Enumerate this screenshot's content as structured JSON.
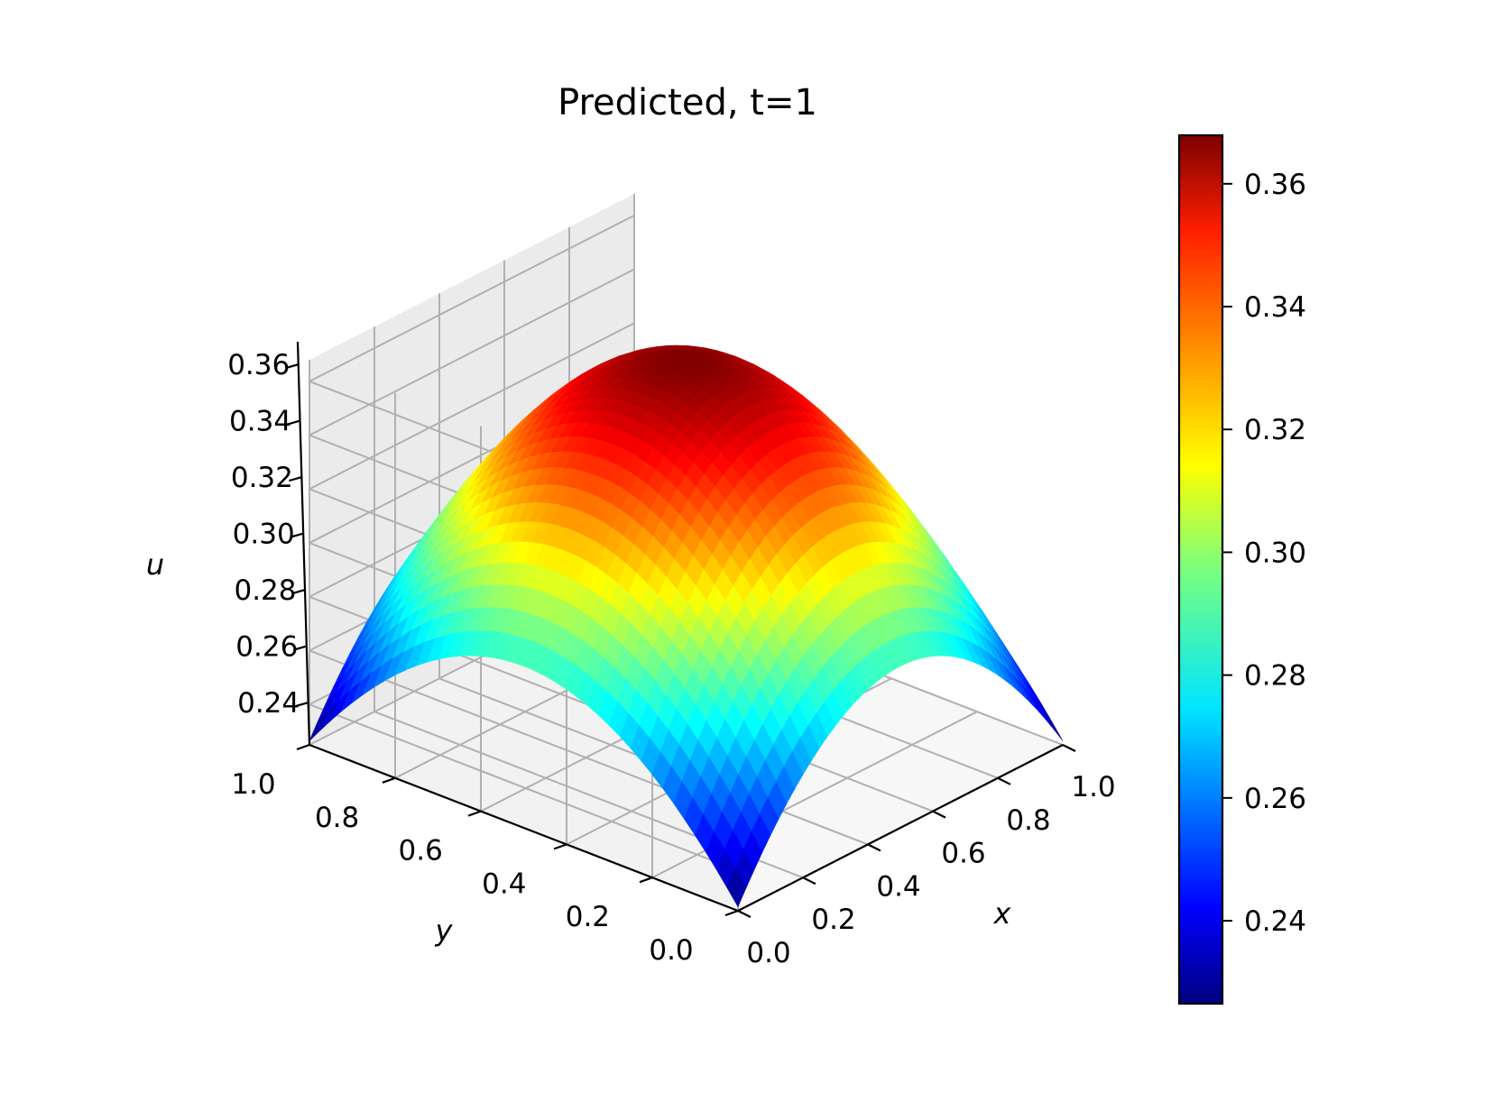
{
  "chart_data": {
    "type": "surface3d",
    "title": "Predicted, t=1",
    "xlabel": "x",
    "ylabel": "y",
    "zlabel": "u",
    "xlim": [
      0.0,
      1.0
    ],
    "ylim": [
      0.0,
      1.0
    ],
    "zlim": [
      0.225,
      0.368
    ],
    "x_ticks": [
      "0.0",
      "0.2",
      "0.4",
      "0.6",
      "0.8",
      "1.0"
    ],
    "y_ticks": [
      "0.0",
      "0.2",
      "0.4",
      "0.6",
      "0.8",
      "1.0"
    ],
    "z_ticks": [
      "0.24",
      "0.26",
      "0.28",
      "0.30",
      "0.32",
      "0.34",
      "0.36"
    ],
    "surface": {
      "grid_n": 41,
      "corner_value": 0.2265,
      "edge_mid_value": 0.2885,
      "peak_value": 0.3679,
      "peak_at": [
        0.5,
        0.5
      ]
    },
    "colorbar": {
      "colormap": "jet",
      "range": [
        0.2265,
        0.3679
      ],
      "ticks": [
        "0.24",
        "0.26",
        "0.28",
        "0.30",
        "0.32",
        "0.34",
        "0.36"
      ]
    },
    "grid": true,
    "pane_color": "#f2f2f2",
    "grid_color": "#b0b0b0"
  }
}
